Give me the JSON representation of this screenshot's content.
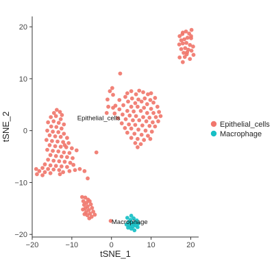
{
  "chart_data": {
    "type": "scatter",
    "xlabel": "tSNE_1",
    "ylabel": "tSNE_2",
    "xlim": [
      -20,
      22
    ],
    "ylim": [
      -20.5,
      22
    ],
    "x_ticks": [
      -20,
      -10,
      0,
      10,
      20
    ],
    "y_ticks": [
      -20,
      -10,
      0,
      10,
      20
    ],
    "x_tick_labels": [
      "−20",
      "−10",
      "0",
      "10",
      "20"
    ],
    "y_tick_labels": [
      "−20",
      "−10",
      "0",
      "10",
      "20"
    ],
    "grid": false,
    "legend_position": "right",
    "series": [
      {
        "name": "Epithelial_cells",
        "color": "#F0776D",
        "points": [
          [
            17.2,
            18.2
          ],
          [
            18.0,
            18.9
          ],
          [
            18.8,
            19.1
          ],
          [
            19.6,
            18.7
          ],
          [
            20.2,
            19.4
          ],
          [
            17.6,
            17.4
          ],
          [
            18.4,
            17.6
          ],
          [
            19.2,
            17.9
          ],
          [
            20.1,
            17.8
          ],
          [
            17.1,
            16.6
          ],
          [
            18.0,
            16.8
          ],
          [
            18.9,
            16.9
          ],
          [
            19.8,
            16.5
          ],
          [
            20.6,
            16.2
          ],
          [
            17.6,
            15.7
          ],
          [
            18.6,
            15.9
          ],
          [
            19.4,
            15.6
          ],
          [
            20.2,
            15.4
          ],
          [
            18.2,
            15.0
          ],
          [
            19.0,
            14.7
          ],
          [
            17.2,
            14.1
          ],
          [
            18.5,
            14.2
          ],
          [
            19.8,
            13.8
          ],
          [
            18.0,
            13.2
          ],
          [
            20.7,
            14.6
          ],
          [
            20.1,
            18.2
          ],
          [
            17.9,
            18.6
          ],
          [
            19.1,
            15.1
          ],
          [
            2.2,
            11.0
          ],
          [
            0.2,
            8.2
          ],
          [
            -0.4,
            7.6
          ],
          [
            0.4,
            6.9
          ],
          [
            -1.0,
            6.0
          ],
          [
            5.0,
            7.6
          ],
          [
            4.0,
            7.2
          ],
          [
            6.2,
            7.0
          ],
          [
            7.0,
            7.7
          ],
          [
            8.0,
            7.4
          ],
          [
            9.2,
            7.0
          ],
          [
            10.0,
            7.2
          ],
          [
            3.5,
            6.5
          ],
          [
            5.2,
            6.2
          ],
          [
            6.8,
            6.0
          ],
          [
            8.4,
            6.2
          ],
          [
            9.8,
            5.9
          ],
          [
            11.0,
            6.3
          ],
          [
            2.0,
            5.9
          ],
          [
            4.2,
            5.6
          ],
          [
            6.0,
            5.3
          ],
          [
            7.6,
            5.6
          ],
          [
            9.0,
            5.1
          ],
          [
            10.6,
            5.4
          ],
          [
            1.0,
            4.8
          ],
          [
            3.0,
            4.9
          ],
          [
            5.0,
            4.6
          ],
          [
            6.6,
            4.6
          ],
          [
            8.2,
            4.4
          ],
          [
            10.0,
            4.2
          ],
          [
            11.6,
            4.6
          ],
          [
            12.0,
            3.6
          ],
          [
            0.4,
            4.4
          ],
          [
            2.0,
            4.1
          ],
          [
            4.0,
            3.8
          ],
          [
            5.6,
            3.7
          ],
          [
            7.4,
            3.8
          ],
          [
            9.0,
            3.4
          ],
          [
            10.6,
            3.4
          ],
          [
            -1.2,
            3.4
          ],
          [
            0.8,
            3.3
          ],
          [
            2.8,
            3.1
          ],
          [
            4.6,
            2.9
          ],
          [
            6.2,
            2.8
          ],
          [
            8.0,
            2.6
          ],
          [
            9.6,
            2.5
          ],
          [
            11.2,
            2.6
          ],
          [
            1.6,
            2.4
          ],
          [
            3.6,
            2.2
          ],
          [
            5.4,
            2.0
          ],
          [
            7.0,
            2.0
          ],
          [
            8.8,
            1.8
          ],
          [
            10.4,
            1.6
          ],
          [
            11.8,
            1.8
          ],
          [
            2.6,
            1.4
          ],
          [
            4.4,
            1.2
          ],
          [
            6.0,
            1.1
          ],
          [
            7.8,
            1.0
          ],
          [
            9.6,
            0.9
          ],
          [
            11.0,
            0.8
          ],
          [
            3.4,
            0.5
          ],
          [
            5.0,
            0.4
          ],
          [
            6.8,
            0.2
          ],
          [
            8.6,
            0.0
          ],
          [
            10.2,
            -0.2
          ],
          [
            4.0,
            -0.4
          ],
          [
            5.8,
            -0.6
          ],
          [
            7.6,
            -0.8
          ],
          [
            9.2,
            -1.0
          ],
          [
            5.0,
            -1.4
          ],
          [
            6.6,
            -1.6
          ],
          [
            8.2,
            -1.8
          ],
          [
            6.0,
            -2.4
          ],
          [
            7.4,
            -2.6
          ],
          [
            6.6,
            -3.2
          ],
          [
            9.8,
            -1.6
          ],
          [
            12.4,
            2.8
          ],
          [
            -0.8,
            4.6
          ],
          [
            -14.5,
            3.4
          ],
          [
            -13.8,
            4.0
          ],
          [
            -13.0,
            3.6
          ],
          [
            -15.3,
            2.6
          ],
          [
            -14.0,
            2.8
          ],
          [
            -12.8,
            2.2
          ],
          [
            -16.0,
            1.6
          ],
          [
            -14.6,
            1.8
          ],
          [
            -13.3,
            1.5
          ],
          [
            -12.0,
            1.2
          ],
          [
            -15.2,
            0.8
          ],
          [
            -13.9,
            0.7
          ],
          [
            -12.6,
            0.4
          ],
          [
            -16.2,
            0.0
          ],
          [
            -14.8,
            -0.2
          ],
          [
            -13.4,
            -0.3
          ],
          [
            -12.0,
            -0.6
          ],
          [
            -15.6,
            -0.9
          ],
          [
            -14.2,
            -1.1
          ],
          [
            -12.8,
            -1.2
          ],
          [
            -11.2,
            -1.4
          ],
          [
            -16.4,
            -1.8
          ],
          [
            -15.0,
            -2.0
          ],
          [
            -13.6,
            -2.1
          ],
          [
            -12.2,
            -2.2
          ],
          [
            -10.8,
            -2.4
          ],
          [
            -15.6,
            -2.8
          ],
          [
            -14.2,
            -3.0
          ],
          [
            -12.8,
            -3.1
          ],
          [
            -11.4,
            -3.2
          ],
          [
            -10.0,
            -3.4
          ],
          [
            -16.2,
            -3.7
          ],
          [
            -14.8,
            -3.9
          ],
          [
            -13.4,
            -4.0
          ],
          [
            -12.0,
            -4.2
          ],
          [
            -10.6,
            -4.3
          ],
          [
            -15.4,
            -4.7
          ],
          [
            -14.0,
            -4.9
          ],
          [
            -12.6,
            -5.0
          ],
          [
            -11.2,
            -5.1
          ],
          [
            -9.8,
            -5.3
          ],
          [
            -16.0,
            -5.6
          ],
          [
            -14.6,
            -5.8
          ],
          [
            -13.2,
            -5.9
          ],
          [
            -11.8,
            -6.0
          ],
          [
            -10.4,
            -6.2
          ],
          [
            -16.8,
            -6.5
          ],
          [
            -15.4,
            -6.7
          ],
          [
            -14.0,
            -6.8
          ],
          [
            -12.6,
            -6.9
          ],
          [
            -11.2,
            -7.0
          ],
          [
            -17.4,
            -7.2
          ],
          [
            -16.0,
            -7.4
          ],
          [
            -14.6,
            -7.5
          ],
          [
            -13.2,
            -7.6
          ],
          [
            -18.2,
            -7.8
          ],
          [
            -16.8,
            -8.0
          ],
          [
            -15.4,
            -8.2
          ],
          [
            -18.8,
            -8.4
          ],
          [
            -17.4,
            -8.6
          ],
          [
            -19.0,
            -7.4
          ],
          [
            -13.0,
            -8.4
          ],
          [
            -10.6,
            -7.8
          ],
          [
            -9.2,
            -7.6
          ],
          [
            -8.0,
            -7.4
          ],
          [
            -6.8,
            -7.8
          ],
          [
            -6.0,
            -9.2
          ],
          [
            -3.8,
            -4.2
          ],
          [
            -8.8,
            -3.8
          ],
          [
            -9.6,
            -6.6
          ],
          [
            -12.2,
            -8.0
          ],
          [
            -11.8,
            -2.8
          ],
          [
            -12.5,
            3.0
          ],
          [
            -6.6,
            -12.9
          ],
          [
            -5.9,
            -13.3
          ],
          [
            -7.1,
            -13.6
          ],
          [
            -6.3,
            -13.9
          ],
          [
            -5.5,
            -13.6
          ],
          [
            -6.9,
            -14.3
          ],
          [
            -6.0,
            -14.6
          ],
          [
            -5.2,
            -14.2
          ],
          [
            -6.6,
            -15.0
          ],
          [
            -5.7,
            -15.3
          ],
          [
            -4.9,
            -14.9
          ],
          [
            -6.4,
            -15.7
          ],
          [
            -5.4,
            -16.0
          ],
          [
            -4.6,
            -15.6
          ],
          [
            -6.1,
            -16.3
          ],
          [
            -5.0,
            -16.6
          ],
          [
            -7.2,
            -15.2
          ],
          [
            -4.2,
            -16.2
          ],
          [
            -5.6,
            -16.9
          ],
          [
            -6.8,
            -16.1
          ],
          [
            -0.2,
            -17.4
          ],
          [
            -7.4,
            -12.8
          ]
        ]
      },
      {
        "name": "Macrophage",
        "color": "#17BFC5",
        "points": [
          [
            4.0,
            -16.8
          ],
          [
            4.8,
            -17.2
          ],
          [
            5.6,
            -16.9
          ],
          [
            6.4,
            -17.3
          ],
          [
            4.4,
            -17.6
          ],
          [
            5.2,
            -17.8
          ],
          [
            6.0,
            -17.7
          ],
          [
            6.8,
            -17.9
          ],
          [
            3.8,
            -18.1
          ],
          [
            4.6,
            -18.3
          ],
          [
            5.4,
            -18.5
          ],
          [
            6.2,
            -18.3
          ],
          [
            5.0,
            -18.9
          ],
          [
            5.8,
            -19.2
          ],
          [
            4.2,
            -18.7
          ],
          [
            5.6,
            -18.0
          ],
          [
            5.0,
            -16.4
          ],
          [
            6.6,
            -18.6
          ]
        ]
      }
    ],
    "annotations": [
      {
        "text": "Epithelial_cells",
        "x": -3.2,
        "y": 2.0
      },
      {
        "text": "Macrophage",
        "x": 4.6,
        "y": -18.0
      }
    ]
  },
  "legend": {
    "items": [
      {
        "label": "Epithelial_cells",
        "color": "#F0776D"
      },
      {
        "label": "Macrophage",
        "color": "#17BFC5"
      }
    ]
  }
}
